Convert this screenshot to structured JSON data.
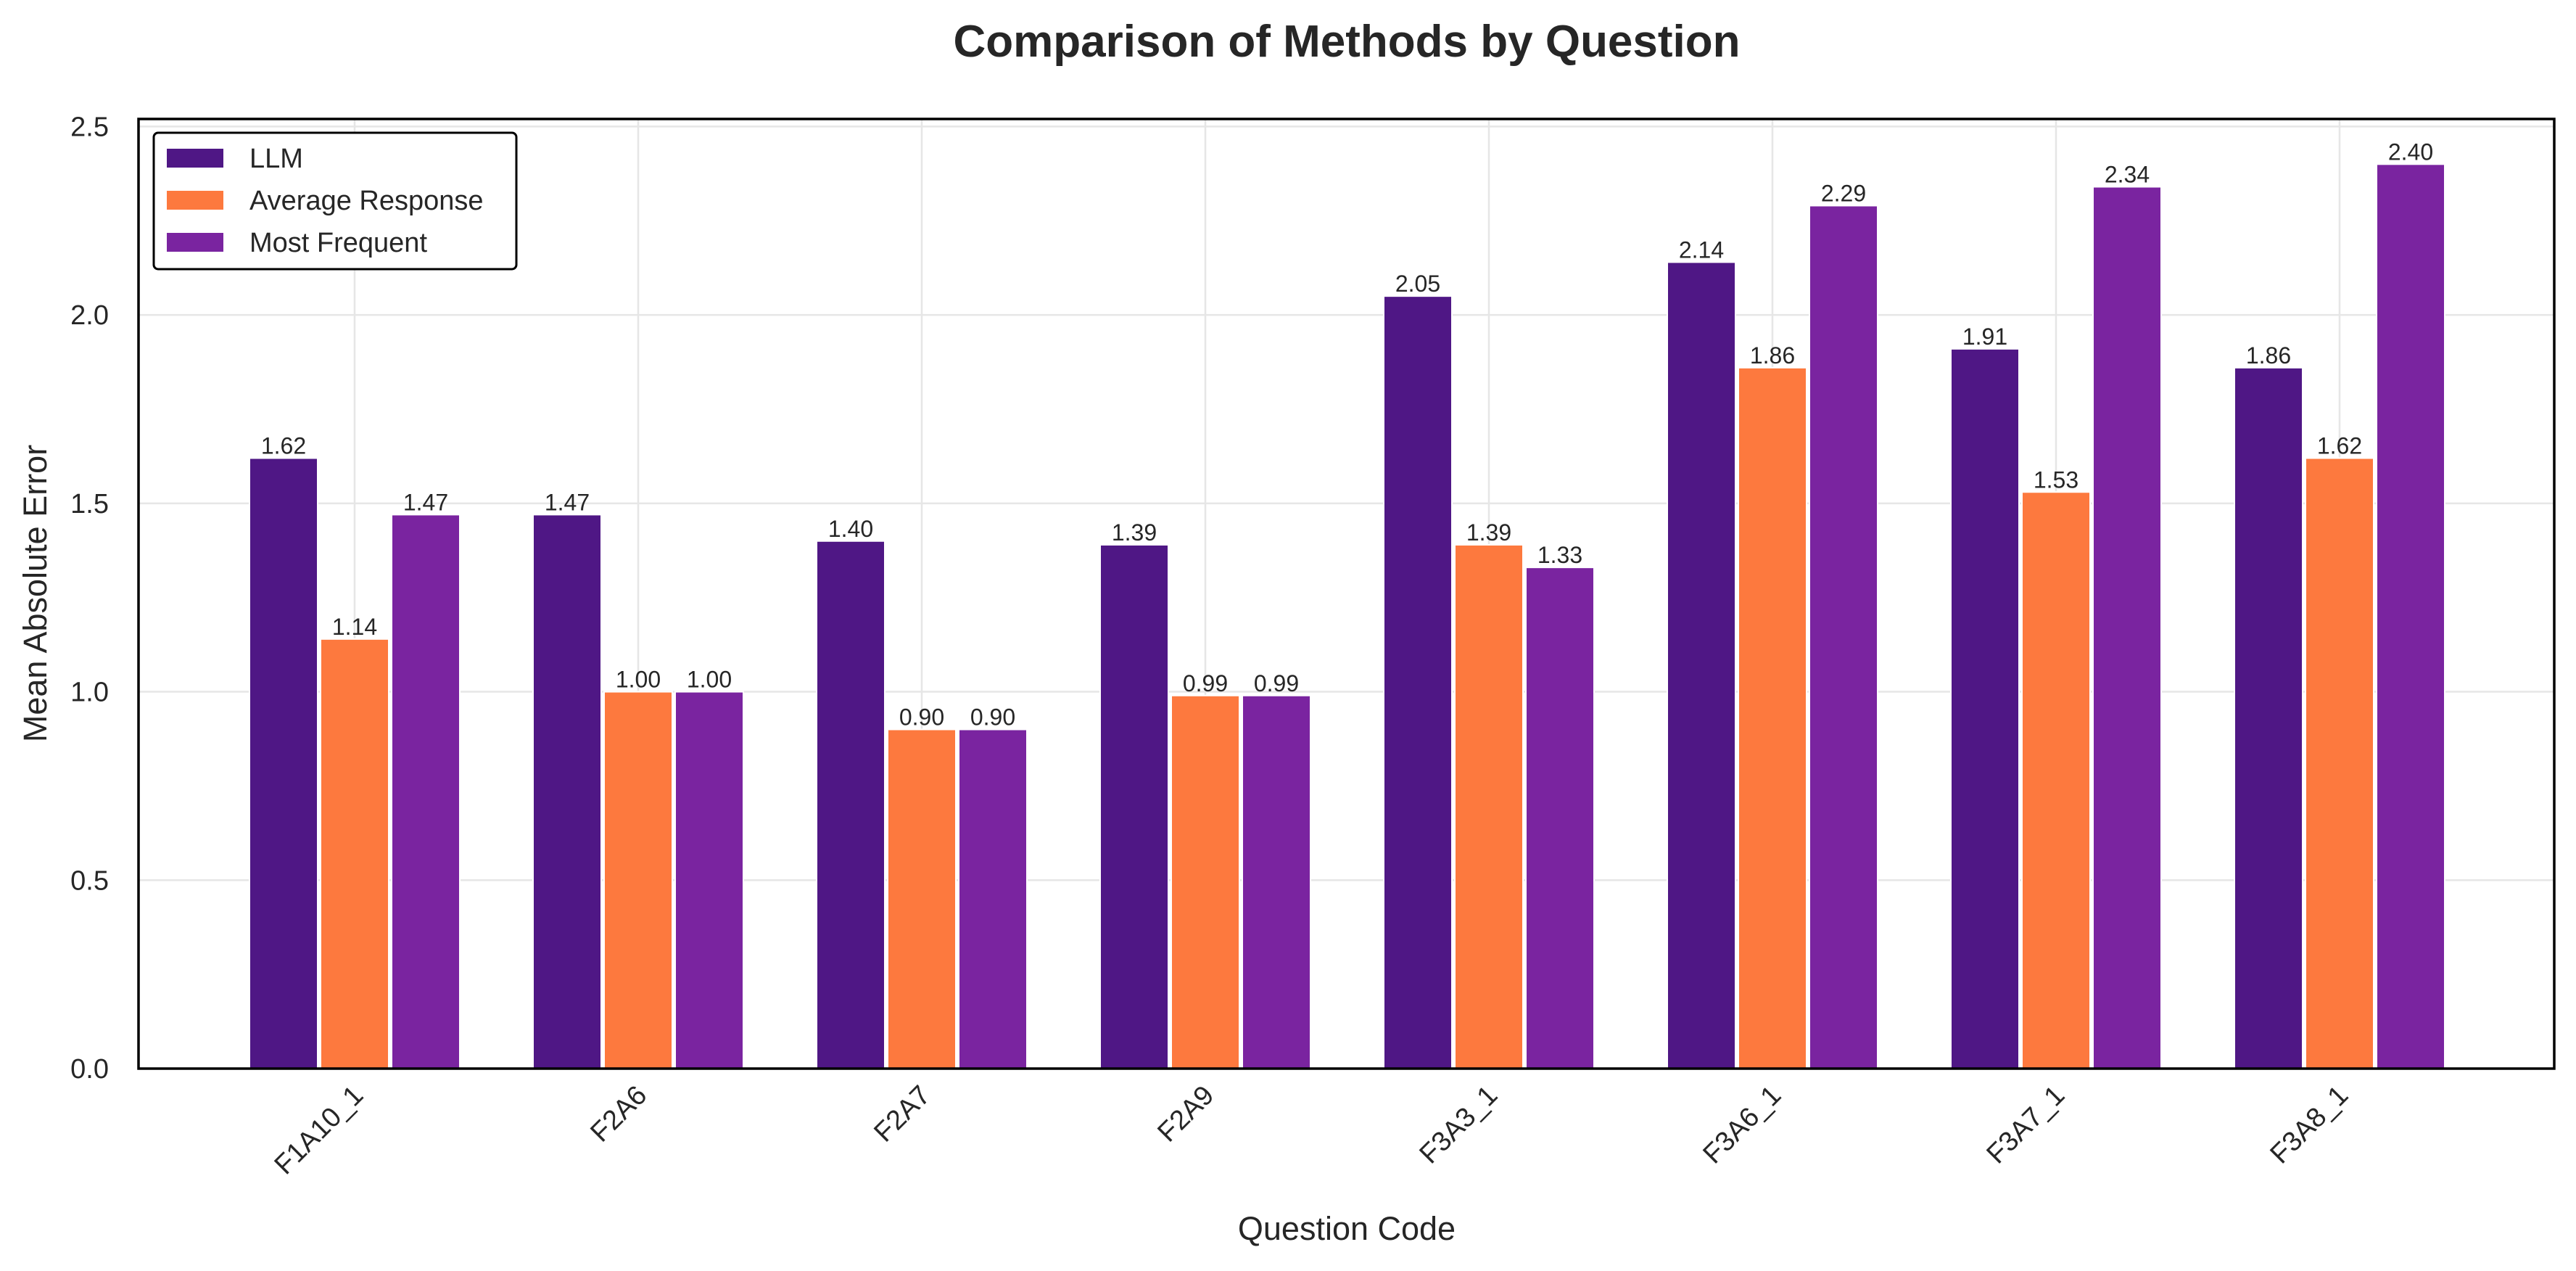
{
  "chart_data": {
    "type": "bar",
    "title": "Comparison of Methods by Question",
    "xlabel": "Question Code",
    "ylabel": "Mean Absolute Error",
    "categories": [
      "F1A10_1",
      "F2A6",
      "F2A7",
      "F2A9",
      "F3A3_1",
      "F3A6_1",
      "F3A7_1",
      "F3A8_1"
    ],
    "series": [
      {
        "name": "LLM",
        "color": "#4f1785",
        "values": [
          1.62,
          1.47,
          1.4,
          1.39,
          2.05,
          2.14,
          1.91,
          1.86
        ]
      },
      {
        "name": "Average Response",
        "color": "#fd793e",
        "values": [
          1.14,
          1.0,
          0.9,
          0.99,
          1.39,
          1.86,
          1.53,
          1.62
        ]
      },
      {
        "name": "Most Frequent",
        "color": "#7a24a0",
        "values": [
          1.47,
          1.0,
          0.9,
          0.99,
          1.33,
          2.29,
          2.34,
          2.4
        ]
      }
    ],
    "ylim": [
      0,
      2.52
    ],
    "yticks": [
      "0.0",
      "0.5",
      "1.0",
      "1.5",
      "2.0",
      "2.5"
    ],
    "grid": true,
    "legend_position": "top-left"
  }
}
